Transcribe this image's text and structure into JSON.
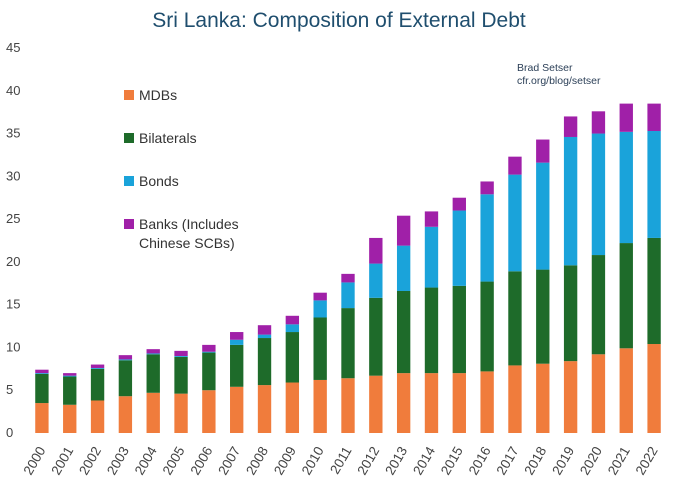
{
  "chart_data": {
    "type": "bar",
    "stacked": true,
    "title": "Sri Lanka: Composition of External Debt",
    "credit": [
      "Brad Setser",
      "cfr.org/blog/setser"
    ],
    "xlabel": "",
    "ylabel": "",
    "ylim": [
      0,
      45
    ],
    "yticks": [
      0,
      5,
      10,
      15,
      20,
      25,
      30,
      35,
      40,
      45
    ],
    "grid": false,
    "legend_position": "upper-left",
    "categories": [
      "2000",
      "2001",
      "2002",
      "2003",
      "2004",
      "2005",
      "2006",
      "2007",
      "2008",
      "2009",
      "2010",
      "2011",
      "2012",
      "2013",
      "2014",
      "2015",
      "2016",
      "2017",
      "2018",
      "2019",
      "2020",
      "2021",
      "2022"
    ],
    "series": [
      {
        "name": "MDBs",
        "color": "#f07c3c",
        "values": [
          3.5,
          3.3,
          3.8,
          4.3,
          4.7,
          4.6,
          5.0,
          5.4,
          5.6,
          5.9,
          6.2,
          6.4,
          6.7,
          7.0,
          7.0,
          7.0,
          7.2,
          7.9,
          8.1,
          8.4,
          9.2,
          9.9,
          10.4
        ]
      },
      {
        "name": "Bilaterals",
        "color": "#1e6b2a",
        "values": [
          3.4,
          3.3,
          3.7,
          4.2,
          4.5,
          4.3,
          4.4,
          4.9,
          5.5,
          5.9,
          7.3,
          8.2,
          9.1,
          9.6,
          10.0,
          10.2,
          10.5,
          11.0,
          11.0,
          11.2,
          11.6,
          12.3,
          12.4
        ]
      },
      {
        "name": "Bonds",
        "color": "#1aa3da",
        "values": [
          0.1,
          0.1,
          0.1,
          0.1,
          0.1,
          0.1,
          0.1,
          0.6,
          0.4,
          0.9,
          2.0,
          3.0,
          4.0,
          5.3,
          7.1,
          8.8,
          10.2,
          11.3,
          12.5,
          15.0,
          14.2,
          13.0,
          12.5
        ]
      },
      {
        "name": "Banks (Includes\nChinese SCBs)",
        "color": "#a020a8",
        "values": [
          0.4,
          0.3,
          0.4,
          0.5,
          0.5,
          0.6,
          0.8,
          0.9,
          1.1,
          1.0,
          0.9,
          1.0,
          3.0,
          3.5,
          1.8,
          1.5,
          1.5,
          2.1,
          2.7,
          2.4,
          2.6,
          3.3,
          3.2
        ]
      }
    ]
  }
}
